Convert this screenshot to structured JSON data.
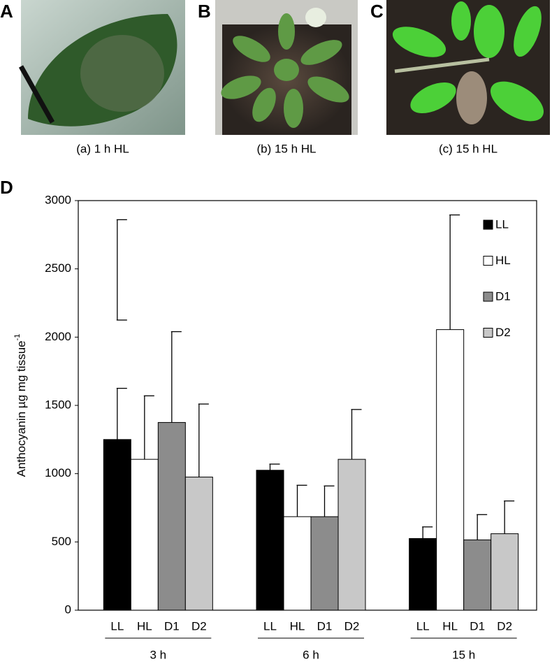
{
  "panels": [
    {
      "letter": "A",
      "caption": "(a) 1 h HL"
    },
    {
      "letter": "B",
      "caption": "(b) 15 h HL"
    },
    {
      "letter": "C",
      "caption": "(c) 15 h HL"
    }
  ],
  "chart_data": {
    "type": "bar",
    "letter": "D",
    "ylabel": "Anthocyanin µg mg tissue",
    "ylabel_superscript": "-1",
    "categories": [
      "3 h",
      "6 h",
      "15 h"
    ],
    "series": [
      {
        "name": "LL",
        "color": "#000000",
        "values": [
          1250,
          1025,
          525
        ],
        "errors": [
          375,
          45,
          85
        ],
        "extra_error_range": [
          2125,
          2860
        ]
      },
      {
        "name": "HL",
        "color": "#ffffff",
        "values": [
          1105,
          685,
          2055
        ],
        "errors": [
          465,
          230,
          840
        ]
      },
      {
        "name": "D1",
        "color": "#8c8c8c",
        "values": [
          1375,
          685,
          515
        ],
        "errors": [
          665,
          225,
          185
        ]
      },
      {
        "name": "D2",
        "color": "#c8c8c8",
        "values": [
          975,
          1105,
          560
        ],
        "errors": [
          535,
          365,
          240
        ]
      }
    ],
    "ylim": [
      0,
      3000
    ],
    "yticks": [
      0,
      500,
      1000,
      1500,
      2000,
      2500,
      3000
    ],
    "legend": "top-right",
    "grid": false
  }
}
